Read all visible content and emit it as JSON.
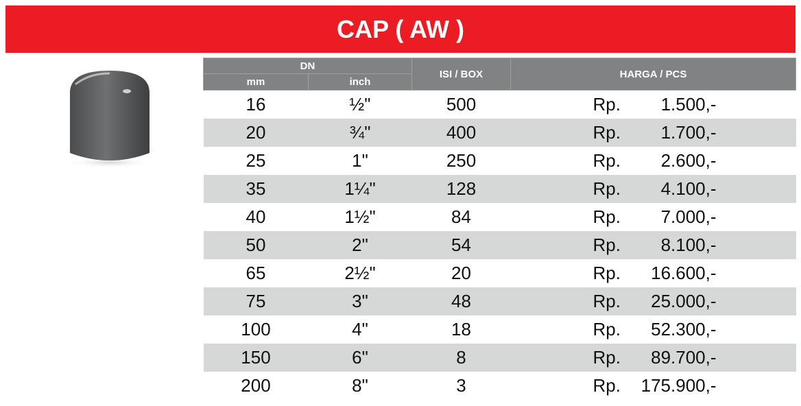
{
  "title": "CAP ( AW )",
  "headers": {
    "dn": "DN",
    "mm": "mm",
    "inch": "inch",
    "isi_box": "ISI / BOX",
    "harga": "HARGA / PCS"
  },
  "currency": "Rp.",
  "rows": [
    {
      "mm": "16",
      "inch": "½\"",
      "isi": "500",
      "price": "1.500,-"
    },
    {
      "mm": "20",
      "inch": "¾\"",
      "isi": "400",
      "price": "1.700,-"
    },
    {
      "mm": "25",
      "inch": "1\"",
      "isi": "250",
      "price": "2.600,-"
    },
    {
      "mm": "35",
      "inch": "1¼\"",
      "isi": "128",
      "price": "4.100,-"
    },
    {
      "mm": "40",
      "inch": "1½\"",
      "isi": "84",
      "price": "7.000,-"
    },
    {
      "mm": "50",
      "inch": "2\"",
      "isi": "54",
      "price": "8.100,-"
    },
    {
      "mm": "65",
      "inch": "2½\"",
      "isi": "20",
      "price": "16.600,-"
    },
    {
      "mm": "75",
      "inch": "3\"",
      "isi": "48",
      "price": "25.000,-"
    },
    {
      "mm": "100",
      "inch": "4\"",
      "isi": "18",
      "price": "52.300,-"
    },
    {
      "mm": "150",
      "inch": "6\"",
      "isi": "8",
      "price": "89.700,-"
    },
    {
      "mm": "200",
      "inch": "8\"",
      "isi": "3",
      "price": "175.900,-"
    }
  ],
  "colors": {
    "banner": "#ec1c24",
    "header": "#808284",
    "alt_row": "#d6d7d7"
  }
}
